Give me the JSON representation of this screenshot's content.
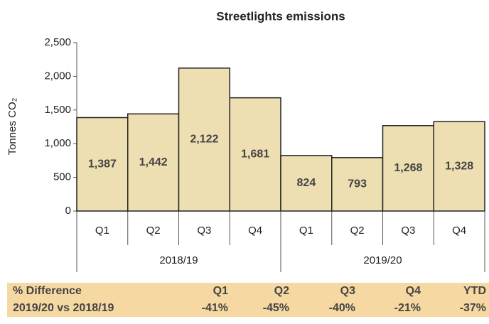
{
  "chart_data": {
    "type": "bar",
    "title": "Streetlights emissions",
    "y_label": "Tonnes CO₂",
    "categories": [
      "Q1",
      "Q2",
      "Q3",
      "Q4",
      "Q1",
      "Q2",
      "Q3",
      "Q4"
    ],
    "groups": [
      "2018/19",
      "2019/20"
    ],
    "values": [
      1387,
      1442,
      2122,
      1681,
      824,
      793,
      1268,
      1328
    ],
    "value_labels": [
      "1,387",
      "1,442",
      "2,122",
      "1,681",
      "824",
      "793",
      "1,268",
      "1,328"
    ],
    "color": "#eedfb2",
    "ylim": [
      0,
      2500
    ],
    "yticks": [
      0,
      500,
      {
        "value": 1000,
        "label": "1,000"
      },
      {
        "value": 1500,
        "label": "1,500"
      },
      {
        "value": 2000,
        "label": "2,000"
      },
      {
        "value": 2500,
        "label": "2,500"
      }
    ]
  },
  "table": {
    "header": [
      "% Difference",
      "Q1",
      "Q2",
      "Q3",
      "Q4",
      "YTD"
    ],
    "rows": [
      [
        "2019/20 vs 2018/19",
        "-41%",
        "-45%",
        "-40%",
        "-21%",
        "-37%"
      ]
    ]
  }
}
